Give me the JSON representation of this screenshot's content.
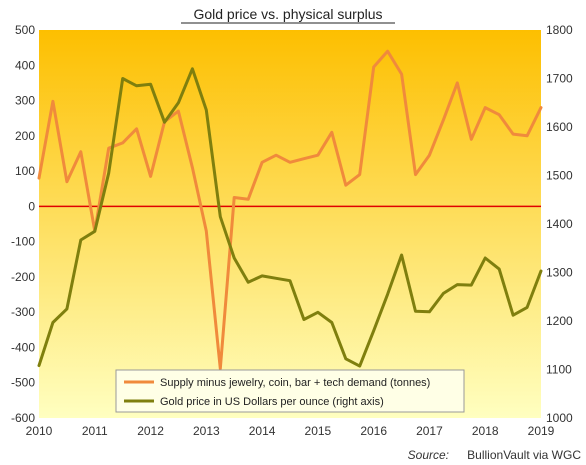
{
  "chart_data": {
    "type": "line",
    "title": "Gold price vs. physical  surplus",
    "source_label": "Source:",
    "source_text": "BullionVault  via  WGC",
    "x_ticks": [
      "2010",
      "2011",
      "2012",
      "2013",
      "2014",
      "2015",
      "2016",
      "2017",
      "2018",
      "2019"
    ],
    "y_left_ticks": [
      "-600",
      "-500",
      "-400",
      "-300",
      "-200",
      "-100",
      "0",
      "100",
      "200",
      "300",
      "400",
      "500"
    ],
    "y_right_ticks": [
      "1000",
      "1100",
      "1200",
      "1300",
      "1400",
      "1500",
      "1600",
      "1700",
      "1800"
    ],
    "ylim_left": [
      -600,
      500
    ],
    "ylim_right": [
      1000,
      1800
    ],
    "xlim": [
      2010,
      2019
    ],
    "zero_line_color": "#e00000",
    "background_gradient": [
      "#fdbf00",
      "#ffffc0"
    ],
    "legend_position": "bottom-center",
    "series": [
      {
        "name": "Supply minus jewelry, coin, bar + tech demand (tonnes)",
        "axis": "left",
        "color": "#f08a3c",
        "x": [
          2010.0,
          2010.25,
          2010.5,
          2010.75,
          2011.0,
          2011.25,
          2011.5,
          2011.75,
          2012.0,
          2012.25,
          2012.5,
          2012.75,
          2013.0,
          2013.25,
          2013.5,
          2013.75,
          2014.0,
          2014.25,
          2014.5,
          2014.75,
          2015.0,
          2015.25,
          2015.5,
          2015.75,
          2016.0,
          2016.25,
          2016.5,
          2016.75,
          2017.0,
          2017.25,
          2017.5,
          2017.75,
          2018.0,
          2018.25,
          2018.5,
          2018.75,
          2019.0
        ],
        "y": [
          80,
          298,
          70,
          155,
          -70,
          165,
          180,
          220,
          85,
          240,
          270,
          110,
          -70,
          -460,
          25,
          20,
          125,
          145,
          125,
          135,
          145,
          210,
          60,
          90,
          395,
          440,
          375,
          90,
          145,
          245,
          350,
          190,
          280,
          260,
          205,
          200,
          280
        ]
      },
      {
        "name": "Gold price in US Dollars per ounce (right axis)",
        "axis": "right",
        "color": "#7f7f0e",
        "x": [
          2010.0,
          2010.25,
          2010.5,
          2010.75,
          2011.0,
          2011.25,
          2011.5,
          2011.75,
          2012.0,
          2012.25,
          2012.5,
          2012.75,
          2013.0,
          2013.25,
          2013.5,
          2013.75,
          2014.0,
          2014.25,
          2014.5,
          2014.75,
          2015.0,
          2015.25,
          2015.5,
          2015.75,
          2016.0,
          2016.25,
          2016.5,
          2016.75,
          2017.0,
          2017.25,
          2017.5,
          2017.75,
          2018.0,
          2018.25,
          2018.5,
          2018.75,
          2019.0
        ],
        "y": [
          1108,
          1197,
          1225,
          1367,
          1385,
          1505,
          1700,
          1685,
          1688,
          1610,
          1650,
          1720,
          1635,
          1415,
          1330,
          1280,
          1293,
          1288,
          1283,
          1203,
          1218,
          1197,
          1122,
          1107,
          1180,
          1255,
          1336,
          1220,
          1219,
          1257,
          1275,
          1274,
          1330,
          1307,
          1212,
          1228,
          1303
        ]
      }
    ]
  }
}
